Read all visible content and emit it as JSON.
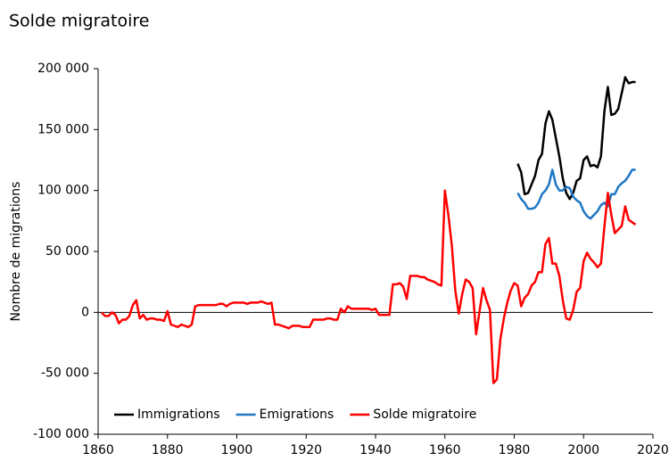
{
  "chart_data": {
    "type": "line",
    "title": "Solde migratoire",
    "y_label": "Nombre de migrations",
    "xlim": [
      1860,
      2020
    ],
    "xticks": [
      1860,
      1880,
      1900,
      1920,
      1940,
      1960,
      1980,
      2000,
      2020
    ],
    "ylim": [
      -100000,
      200000
    ],
    "yticks": [
      {
        "value": -100000,
        "label": "-100 000"
      },
      {
        "value": -50000,
        "label": "-50 000"
      },
      0,
      {
        "value": 50000,
        "label": "50 000"
      },
      {
        "value": 100000,
        "label": "100 000"
      },
      {
        "value": 150000,
        "label": "150 000"
      },
      {
        "value": 200000,
        "label": "200 000"
      }
    ],
    "legend": "lower left",
    "series": [
      {
        "name": "Immigrations",
        "color": "#000000",
        "x": [
          1981,
          1982,
          1983,
          1984,
          1985,
          1986,
          1987,
          1988,
          1989,
          1990,
          1991,
          1992,
          1993,
          1994,
          1995,
          1996,
          1997,
          1998,
          1999,
          2000,
          2001,
          2002,
          2003,
          2004,
          2005,
          2006,
          2007,
          2008,
          2009,
          2010,
          2011,
          2012,
          2013,
          2014,
          2015
        ],
        "values": [
          122000,
          115000,
          97000,
          98000,
          105000,
          112000,
          125000,
          130000,
          155000,
          165000,
          158000,
          143000,
          128000,
          110000,
          98000,
          93000,
          98000,
          108000,
          110000,
          125000,
          128000,
          120000,
          121000,
          119000,
          128000,
          165000,
          185000,
          162000,
          163000,
          167000,
          180000,
          193000,
          188000,
          189000,
          189000
        ]
      },
      {
        "name": "Emigrations",
        "color": "#1f77c4",
        "x": [
          1981,
          1982,
          1983,
          1984,
          1985,
          1986,
          1987,
          1988,
          1989,
          1990,
          1991,
          1992,
          1993,
          1994,
          1995,
          1996,
          1997,
          1998,
          1999,
          2000,
          2001,
          2002,
          2003,
          2004,
          2005,
          2006,
          2007,
          2008,
          2009,
          2010,
          2011,
          2012,
          2013,
          2014,
          2015
        ],
        "values": [
          98000,
          93000,
          90000,
          85000,
          85000,
          86000,
          90000,
          97000,
          100000,
          105000,
          117000,
          105000,
          100000,
          100000,
          103000,
          102000,
          95000,
          92000,
          90000,
          83000,
          79000,
          77000,
          80000,
          83000,
          88000,
          90000,
          87000,
          97000,
          97000,
          103000,
          106000,
          108000,
          112000,
          117000,
          117000
        ]
      },
      {
        "name": "Solde migratoire",
        "color": "#ff0000",
        "x": [
          1861,
          1862,
          1863,
          1864,
          1865,
          1866,
          1867,
          1868,
          1869,
          1870,
          1871,
          1872,
          1873,
          1874,
          1875,
          1876,
          1877,
          1878,
          1879,
          1880,
          1881,
          1882,
          1883,
          1884,
          1885,
          1886,
          1887,
          1888,
          1889,
          1890,
          1891,
          1892,
          1893,
          1894,
          1895,
          1896,
          1897,
          1898,
          1899,
          1900,
          1901,
          1902,
          1903,
          1904,
          1905,
          1906,
          1907,
          1908,
          1909,
          1910,
          1911,
          1912,
          1913,
          1914,
          1915,
          1916,
          1917,
          1918,
          1919,
          1920,
          1921,
          1922,
          1923,
          1924,
          1925,
          1926,
          1927,
          1928,
          1929,
          1930,
          1931,
          1932,
          1933,
          1934,
          1935,
          1936,
          1937,
          1938,
          1939,
          1940,
          1941,
          1942,
          1943,
          1944,
          1945,
          1946,
          1947,
          1948,
          1949,
          1950,
          1951,
          1952,
          1953,
          1954,
          1955,
          1956,
          1957,
          1958,
          1959,
          1960,
          1961,
          1962,
          1963,
          1964,
          1965,
          1966,
          1967,
          1968,
          1969,
          1970,
          1971,
          1972,
          1973,
          1974,
          1975,
          1976,
          1977,
          1978,
          1979,
          1980,
          1981,
          1982,
          1983,
          1984,
          1985,
          1986,
          1987,
          1988,
          1989,
          1990,
          1991,
          1992,
          1993,
          1994,
          1995,
          1996,
          1997,
          1998,
          1999,
          2000,
          2001,
          2002,
          2003,
          2004,
          2005,
          2006,
          2007,
          2008,
          2009,
          2010,
          2011,
          2012,
          2013,
          2014,
          2015
        ],
        "values": [
          0,
          -3000,
          -3000,
          0,
          -2000,
          -9000,
          -6000,
          -6000,
          -3000,
          6000,
          10000,
          -5000,
          -2000,
          -6000,
          -5000,
          -5000,
          -6000,
          -6000,
          -7000,
          1000,
          -10000,
          -11000,
          -12000,
          -10000,
          -11000,
          -12000,
          -10000,
          5000,
          6000,
          6000,
          6000,
          6000,
          6000,
          6000,
          7000,
          7000,
          5000,
          7000,
          8000,
          8000,
          8000,
          8000,
          7000,
          8000,
          8000,
          8000,
          9000,
          8000,
          7000,
          8000,
          -10000,
          -10000,
          -11000,
          -12000,
          -13000,
          -11000,
          -11000,
          -11000,
          -12000,
          -12000,
          -12000,
          -6000,
          -6000,
          -6000,
          -6000,
          -5000,
          -5000,
          -6000,
          -6000,
          3000,
          0,
          5000,
          3000,
          3000,
          3000,
          3000,
          3000,
          3000,
          2000,
          3000,
          -2000,
          -2000,
          -2000,
          -2000,
          23000,
          23000,
          24000,
          21000,
          11000,
          30000,
          30000,
          30000,
          29000,
          29000,
          27000,
          26000,
          25000,
          23000,
          22000,
          100000,
          80000,
          55000,
          18000,
          -1000,
          15000,
          27000,
          25000,
          20000,
          -18000,
          1000,
          20000,
          10000,
          2000,
          -58000,
          -55000,
          -22000,
          -5000,
          8000,
          18000,
          24000,
          22000,
          5000,
          12000,
          15000,
          22000,
          25000,
          33000,
          33000,
          56000,
          61000,
          40000,
          40000,
          30000,
          10000,
          -5000,
          -6000,
          2000,
          17000,
          20000,
          42000,
          49000,
          44000,
          41000,
          37000,
          40000,
          70000,
          98000,
          80000,
          65000,
          68000,
          71000,
          87000,
          76000,
          74000,
          72000
        ]
      }
    ]
  }
}
